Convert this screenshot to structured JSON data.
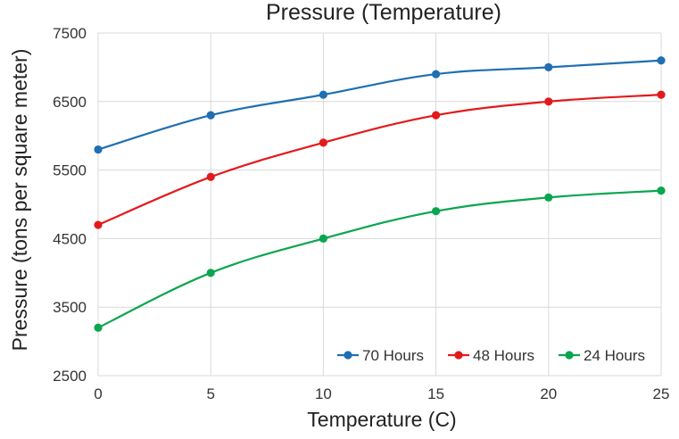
{
  "chart_data": {
    "type": "line",
    "title": "Pressure (Temperature)",
    "xlabel": "Temperature (C)",
    "ylabel": "Pressure (tons per square meter)",
    "x": [
      0,
      5,
      10,
      15,
      20,
      25
    ],
    "xlim": [
      0,
      25
    ],
    "ylim": [
      2500,
      7500
    ],
    "xticks": [
      "0",
      "5",
      "10",
      "15",
      "20",
      "25"
    ],
    "yticks": [
      "2500",
      "3500",
      "4500",
      "5500",
      "6500",
      "7500"
    ],
    "grid": true,
    "legend_position": "bottom-right",
    "series": [
      {
        "name": "70 Hours",
        "color": "#1f6fb2",
        "values": [
          5800,
          6300,
          6600,
          6900,
          7000,
          7100
        ]
      },
      {
        "name": "48 Hours",
        "color": "#e31a1c",
        "values": [
          4700,
          5400,
          5900,
          6300,
          6500,
          6600
        ]
      },
      {
        "name": "24 Hours",
        "color": "#0aa64f",
        "values": [
          3200,
          4000,
          4500,
          4900,
          5100,
          5200
        ]
      }
    ]
  }
}
